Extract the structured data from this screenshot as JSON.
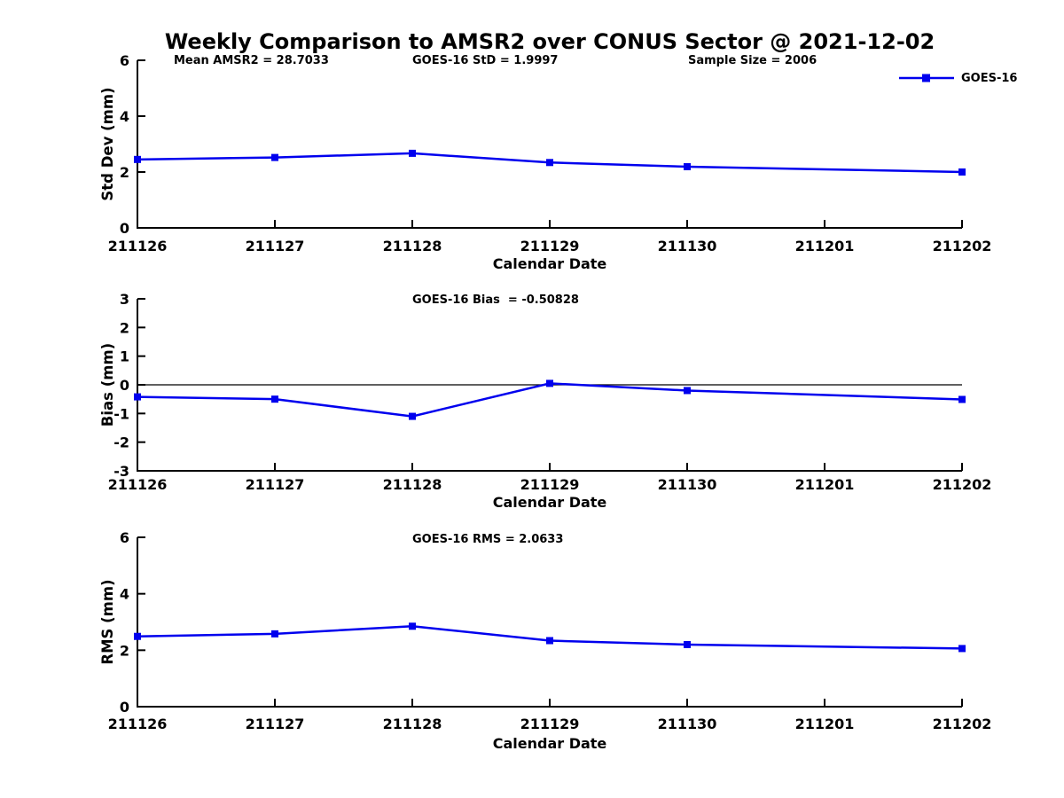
{
  "title": "Weekly Comparison to AMSR2 over CONUS Sector @ 2021-12-02",
  "colors": {
    "line": "#0000EE",
    "text": "#000000",
    "background": "#FFFFFF"
  },
  "legend": {
    "label": "GOES-16"
  },
  "stats": {
    "mean_amsr2": "Mean AMSR2 = 28.7033",
    "goes16_std": "GOES-16 StD = 1.9997",
    "sample_size": "Sample Size = 2006",
    "goes16_bias": "GOES-16 Bias  = -0.50828",
    "goes16_rms": "GOES-16 RMS = 2.0633"
  },
  "chart_data": [
    {
      "type": "line",
      "name": "std-dev",
      "series_name": "GOES-16",
      "title": "",
      "categories": [
        "211126",
        "211127",
        "211128",
        "211129",
        "211130",
        "211201",
        "211202"
      ],
      "x": [
        0,
        1,
        2,
        3,
        4,
        6
      ],
      "x_dates": [
        "211126",
        "211127",
        "211128",
        "211129",
        "211130",
        "211202"
      ],
      "values": [
        2.45,
        2.52,
        2.67,
        2.34,
        2.19,
        2.0
      ],
      "xlabel": "Calendar Date",
      "ylabel": "Std Dev (mm)",
      "ylim": [
        0,
        6
      ],
      "yticks": [
        0,
        2,
        4,
        6
      ],
      "zero_line": false,
      "grid": false,
      "marker": "square"
    },
    {
      "type": "line",
      "name": "bias",
      "series_name": "GOES-16",
      "title": "",
      "categories": [
        "211126",
        "211127",
        "211128",
        "211129",
        "211130",
        "211201",
        "211202"
      ],
      "x": [
        0,
        1,
        2,
        3,
        4,
        6
      ],
      "x_dates": [
        "211126",
        "211127",
        "211128",
        "211129",
        "211130",
        "211202"
      ],
      "values": [
        -0.42,
        -0.5,
        -1.1,
        0.05,
        -0.2,
        -0.51
      ],
      "xlabel": "Calendar Date",
      "ylabel": "Bias (mm)",
      "ylim": [
        -3,
        3
      ],
      "yticks": [
        3,
        2,
        1,
        0,
        -1,
        -2,
        -3
      ],
      "zero_line": true,
      "grid": false,
      "marker": "square"
    },
    {
      "type": "line",
      "name": "rms",
      "series_name": "GOES-16",
      "title": "",
      "categories": [
        "211126",
        "211127",
        "211128",
        "211129",
        "211130",
        "211201",
        "211202"
      ],
      "x": [
        0,
        1,
        2,
        3,
        4,
        6
      ],
      "x_dates": [
        "211126",
        "211127",
        "211128",
        "211129",
        "211130",
        "211202"
      ],
      "values": [
        2.49,
        2.58,
        2.85,
        2.34,
        2.2,
        2.06
      ],
      "xlabel": "Calendar Date",
      "ylabel": "RMS (mm)",
      "ylim": [
        0,
        6
      ],
      "yticks": [
        0,
        2,
        4,
        6
      ],
      "zero_line": false,
      "grid": false,
      "marker": "square"
    }
  ]
}
